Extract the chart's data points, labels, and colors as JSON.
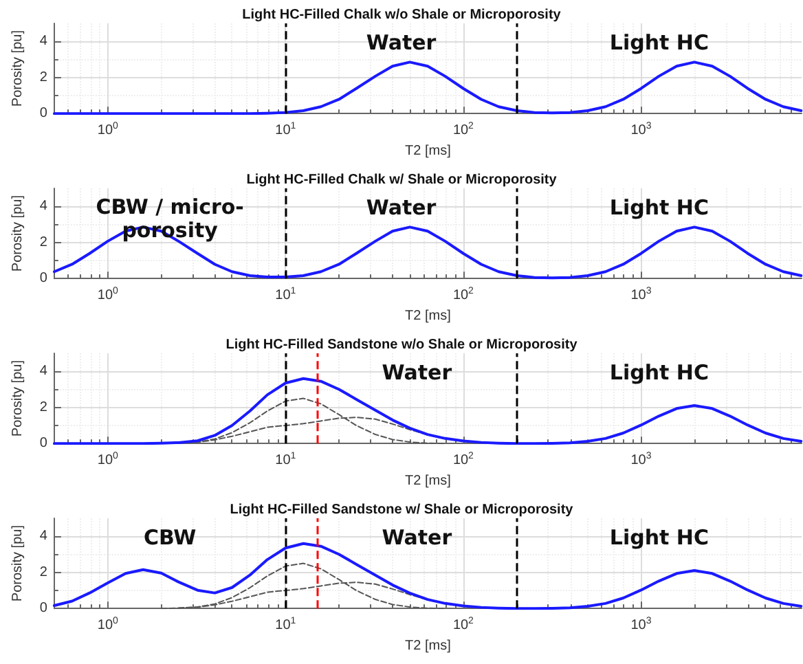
{
  "chart_data": [
    {
      "type": "line",
      "title": "Light HC-Filled Chalk w/o Shale or Microporosity",
      "xlabel": "T2 [ms]",
      "ylabel": "Porosity [pu]",
      "log": "x",
      "grid": true,
      "marker": "none",
      "x": [
        0.5,
        0.63,
        0.79,
        1,
        1.26,
        1.58,
        2,
        2.5,
        3.2,
        4,
        5,
        6.3,
        7.9,
        10,
        12.6,
        15.8,
        20,
        25,
        32,
        40,
        50,
        63,
        79,
        100,
        126,
        158,
        200,
        251,
        316,
        398,
        501,
        631,
        794,
        1000,
        1259,
        1585,
        1995,
        2512,
        3162,
        3981,
        5012,
        6310,
        7943
      ],
      "xlim": [
        0.5,
        8000
      ],
      "xticks": [
        {
          "value": 1,
          "label": "10$^{0}$"
        },
        {
          "value": 10,
          "label": "10$^{1}$"
        },
        {
          "value": 100,
          "label": "10$^{2}$"
        },
        {
          "value": 1000,
          "label": "10$^{3}$"
        }
      ],
      "ylim": [
        0,
        5
      ],
      "yticks": [
        0,
        2,
        4
      ],
      "series": [
        {
          "color": "#1a1aff",
          "line_style": "solid",
          "values": [
            0,
            0,
            0,
            0,
            0,
            0,
            0,
            0,
            0,
            0,
            0,
            0,
            0.02,
            0.06,
            0.16,
            0.38,
            0.79,
            1.39,
            2.07,
            2.63,
            2.85,
            2.63,
            2.07,
            1.39,
            0.79,
            0.38,
            0.16,
            0.06,
            0.04,
            0.06,
            0.16,
            0.38,
            0.79,
            1.39,
            2.07,
            2.63,
            2.85,
            2.63,
            2.07,
            1.39,
            0.79,
            0.38,
            0.16
          ]
        }
      ],
      "ref_lines": [
        {
          "axis": "x",
          "value": 10,
          "color": "#000000",
          "line_style": "dashed"
        },
        {
          "axis": "x",
          "value": 200,
          "color": "#000000",
          "line_style": "dashed"
        }
      ],
      "annotations": [
        "Water",
        "Light HC"
      ]
    },
    {
      "type": "line",
      "title": "Light HC-Filled Chalk w/ Shale or Microporosity",
      "xlabel": "T2 [ms]",
      "ylabel": "Porosity [pu]",
      "log": "x",
      "grid": true,
      "marker": "none",
      "x": [
        0.5,
        0.63,
        0.79,
        1,
        1.26,
        1.58,
        2,
        2.5,
        3.2,
        4,
        5,
        6.3,
        7.9,
        10,
        12.6,
        15.8,
        20,
        25,
        32,
        40,
        50,
        63,
        79,
        100,
        126,
        158,
        200,
        251,
        316,
        398,
        501,
        631,
        794,
        1000,
        1259,
        1585,
        1995,
        2512,
        3162,
        3981,
        5012,
        6310,
        7943
      ],
      "xlim": [
        0.5,
        8000
      ],
      "xticks": [
        {
          "value": 1,
          "label": "10$^{0}$"
        },
        {
          "value": 10,
          "label": "10$^{1}$"
        },
        {
          "value": 100,
          "label": "10$^{2}$"
        },
        {
          "value": 1000,
          "label": "10$^{3}$"
        }
      ],
      "ylim": [
        0,
        5
      ],
      "yticks": [
        0,
        2,
        4
      ],
      "series": [
        {
          "color": "#1a1aff",
          "line_style": "solid",
          "values": [
            0.38,
            0.79,
            1.39,
            2.07,
            2.63,
            2.85,
            2.63,
            2.07,
            1.39,
            0.79,
            0.38,
            0.16,
            0.08,
            0.08,
            0.16,
            0.38,
            0.79,
            1.39,
            2.07,
            2.63,
            2.85,
            2.63,
            2.07,
            1.39,
            0.79,
            0.38,
            0.16,
            0.06,
            0.04,
            0.06,
            0.16,
            0.38,
            0.79,
            1.39,
            2.07,
            2.63,
            2.85,
            2.63,
            2.07,
            1.39,
            0.79,
            0.38,
            0.16
          ]
        }
      ],
      "ref_lines": [
        {
          "axis": "x",
          "value": 10,
          "color": "#000000",
          "line_style": "dashed"
        },
        {
          "axis": "x",
          "value": 200,
          "color": "#000000",
          "line_style": "dashed"
        }
      ],
      "annotations": [
        "CBW / micro-\nporosity",
        "Water",
        "Light HC"
      ]
    },
    {
      "type": "line",
      "title": "Light HC-Filled Sandstone w/o Shale or Microporosity",
      "xlabel": "T2 [ms]",
      "ylabel": "Porosity [pu]",
      "log": "x",
      "grid": true,
      "marker": "none",
      "x": [
        0.5,
        0.63,
        0.79,
        1,
        1.26,
        1.58,
        2,
        2.5,
        3.2,
        4,
        5,
        6.3,
        7.9,
        10,
        12.6,
        15.8,
        20,
        25,
        32,
        40,
        50,
        63,
        79,
        100,
        126,
        158,
        200,
        251,
        316,
        398,
        501,
        631,
        794,
        1000,
        1259,
        1585,
        1995,
        2512,
        3162,
        3981,
        5012,
        6310,
        7943
      ],
      "xlim": [
        0.5,
        8000
      ],
      "xticks": [
        {
          "value": 1,
          "label": "10$^{0}$"
        },
        {
          "value": 10,
          "label": "10$^{1}$"
        },
        {
          "value": 100,
          "label": "10$^{2}$"
        },
        {
          "value": 1000,
          "label": "10$^{3}$"
        }
      ],
      "ylim": [
        0,
        5
      ],
      "yticks": [
        0,
        2,
        4
      ],
      "series": [
        {
          "color": "#555555",
          "line_style": "dashed",
          "values": [
            null,
            null,
            null,
            null,
            null,
            null,
            0,
            0.02,
            0.08,
            0.25,
            0.6,
            1.15,
            1.8,
            2.35,
            2.5,
            2.2,
            1.6,
            1.0,
            0.5,
            0.22,
            0.08,
            0.02,
            0,
            null,
            null,
            null,
            null,
            null,
            null,
            null,
            null,
            null,
            null,
            null,
            null,
            null,
            null,
            null,
            null,
            null,
            null,
            null,
            null
          ]
        },
        {
          "color": "#555555",
          "line_style": "dashed",
          "values": [
            null,
            null,
            null,
            null,
            null,
            null,
            null,
            0.03,
            0.07,
            0.2,
            0.4,
            0.65,
            0.9,
            1.0,
            1.1,
            1.25,
            1.4,
            1.45,
            1.35,
            1.08,
            0.77,
            0.48,
            0.28,
            0.14,
            0.06,
            null,
            null,
            null,
            null,
            null,
            null,
            null,
            null,
            null,
            null,
            null,
            null,
            null,
            null,
            null,
            null,
            null,
            null
          ]
        },
        {
          "color": "#1a1aff",
          "line_style": "solid",
          "values": [
            0,
            0,
            0,
            0,
            0,
            0,
            0.02,
            0.05,
            0.15,
            0.45,
            1.0,
            1.8,
            2.7,
            3.35,
            3.6,
            3.45,
            3.0,
            2.45,
            1.85,
            1.3,
            0.85,
            0.5,
            0.28,
            0.14,
            0.06,
            0.02,
            0,
            0,
            0.01,
            0.04,
            0.12,
            0.28,
            0.58,
            1.02,
            1.52,
            1.94,
            2.1,
            1.94,
            1.52,
            1.02,
            0.58,
            0.28,
            0.12
          ]
        }
      ],
      "ref_lines": [
        {
          "axis": "x",
          "value": 10,
          "color": "#000000",
          "line_style": "dashed"
        },
        {
          "axis": "x",
          "value": 15,
          "color": "#ff0000",
          "line_style": "dashed"
        },
        {
          "axis": "x",
          "value": 200,
          "color": "#000000",
          "line_style": "dashed"
        }
      ],
      "annotations": [
        "Water",
        "Light HC"
      ]
    },
    {
      "type": "line",
      "title": "Light HC-Filled Sandstone w/ Shale or Microporosity",
      "xlabel": "T2 [ms]",
      "ylabel": "Porosity [pu]",
      "log": "x",
      "grid": true,
      "marker": "none",
      "x": [
        0.5,
        0.63,
        0.79,
        1,
        1.26,
        1.58,
        2,
        2.5,
        3.2,
        4,
        5,
        6.3,
        7.9,
        10,
        12.6,
        15.8,
        20,
        25,
        32,
        40,
        50,
        63,
        79,
        100,
        126,
        158,
        200,
        251,
        316,
        398,
        501,
        631,
        794,
        1000,
        1259,
        1585,
        1995,
        2512,
        3162,
        3981,
        5012,
        6310,
        7943
      ],
      "xlim": [
        0.5,
        8000
      ],
      "xticks": [
        {
          "value": 1,
          "label": "10$^{0}$"
        },
        {
          "value": 10,
          "label": "10$^{1}$"
        },
        {
          "value": 100,
          "label": "10$^{2}$"
        },
        {
          "value": 1000,
          "label": "10$^{3}$"
        }
      ],
      "ylim": [
        0,
        5
      ],
      "yticks": [
        0,
        2,
        4
      ],
      "series": [
        {
          "color": "#555555",
          "line_style": "dashed",
          "values": [
            null,
            null,
            null,
            null,
            null,
            null,
            0,
            0.02,
            0.08,
            0.25,
            0.6,
            1.15,
            1.8,
            2.35,
            2.5,
            2.2,
            1.6,
            1.0,
            0.5,
            0.22,
            0.08,
            0.02,
            0,
            null,
            null,
            null,
            null,
            null,
            null,
            null,
            null,
            null,
            null,
            null,
            null,
            null,
            null,
            null,
            null,
            null,
            null,
            null,
            null
          ]
        },
        {
          "color": "#555555",
          "line_style": "dashed",
          "values": [
            null,
            null,
            null,
            null,
            null,
            null,
            null,
            0.03,
            0.07,
            0.2,
            0.4,
            0.65,
            0.9,
            1.0,
            1.1,
            1.25,
            1.4,
            1.45,
            1.35,
            1.08,
            0.77,
            0.48,
            0.28,
            0.14,
            0.06,
            null,
            null,
            null,
            null,
            null,
            null,
            null,
            null,
            null,
            null,
            null,
            null,
            null,
            null,
            null,
            null,
            null,
            null
          ]
        },
        {
          "color": "#1a1aff",
          "line_style": "solid",
          "values": [
            0.16,
            0.41,
            0.86,
            1.42,
            1.94,
            2.15,
            1.96,
            1.47,
            1.01,
            0.86,
            1.16,
            1.85,
            2.71,
            3.35,
            3.6,
            3.45,
            3.0,
            2.45,
            1.85,
            1.3,
            0.85,
            0.5,
            0.28,
            0.14,
            0.06,
            0.02,
            0,
            0,
            0.01,
            0.04,
            0.12,
            0.28,
            0.58,
            1.02,
            1.52,
            1.94,
            2.1,
            1.94,
            1.52,
            1.02,
            0.58,
            0.28,
            0.12
          ]
        }
      ],
      "ref_lines": [
        {
          "axis": "x",
          "value": 10,
          "color": "#000000",
          "line_style": "dashed"
        },
        {
          "axis": "x",
          "value": 15,
          "color": "#ff0000",
          "line_style": "dashed"
        },
        {
          "axis": "x",
          "value": 200,
          "color": "#000000",
          "line_style": "dashed"
        }
      ],
      "annotations": [
        "CBW",
        "Water",
        "Light HC"
      ]
    }
  ]
}
